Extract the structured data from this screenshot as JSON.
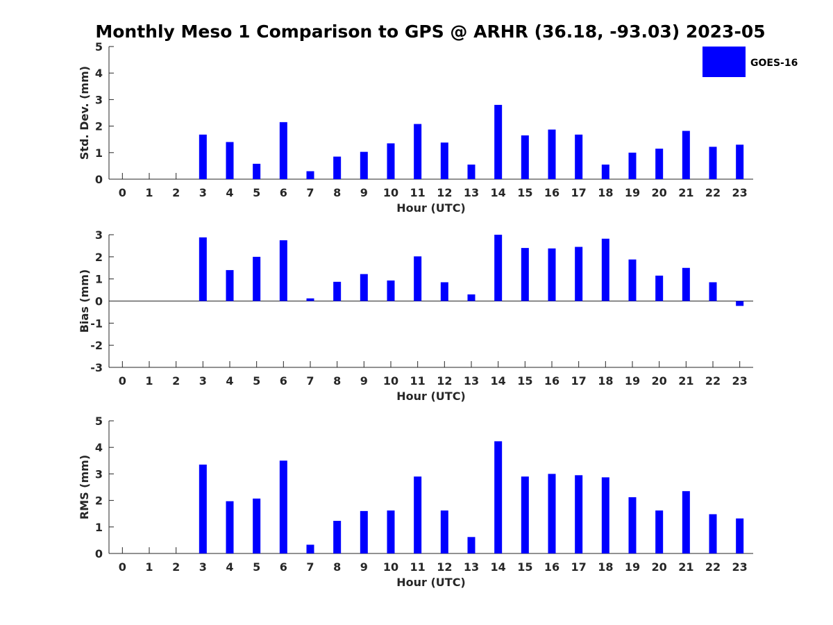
{
  "chart_data": {
    "type": "bar",
    "title": "Monthly Meso 1 Comparison to GPS @ ARHR (36.18, -93.03) 2023-05",
    "legend": {
      "position": "top-right",
      "entries": [
        "GOES-16"
      ]
    },
    "colors": {
      "bar": "#0000ff",
      "axis": "#262626"
    },
    "panels": [
      {
        "ylabel": "Std. Dev. (mm)",
        "xlabel": "Hour (UTC)",
        "ylim": [
          0,
          5
        ],
        "yticks": [
          0,
          1,
          2,
          3,
          4,
          5
        ],
        "categories": [
          0,
          1,
          2,
          3,
          4,
          5,
          6,
          7,
          8,
          9,
          10,
          11,
          12,
          13,
          14,
          15,
          16,
          17,
          18,
          19,
          20,
          21,
          22,
          23
        ],
        "series": [
          {
            "name": "GOES-16",
            "values": [
              null,
              null,
              null,
              1.68,
              1.4,
              0.58,
              2.15,
              0.3,
              0.85,
              1.03,
              1.35,
              2.08,
              1.38,
              0.55,
              2.8,
              1.65,
              1.87,
              1.68,
              0.55,
              1.0,
              1.15,
              1.82,
              1.22,
              1.3
            ]
          }
        ]
      },
      {
        "ylabel": "Bias (mm)",
        "xlabel": "Hour (UTC)",
        "ylim": [
          -3,
          3
        ],
        "yticks": [
          -3,
          -2,
          -1,
          0,
          1,
          2,
          3
        ],
        "categories": [
          0,
          1,
          2,
          3,
          4,
          5,
          6,
          7,
          8,
          9,
          10,
          11,
          12,
          13,
          14,
          15,
          16,
          17,
          18,
          19,
          20,
          21,
          22,
          23
        ],
        "series": [
          {
            "name": "GOES-16",
            "values": [
              null,
              null,
              null,
              2.88,
              1.4,
              2.0,
              2.75,
              0.12,
              0.87,
              1.22,
              0.93,
              2.02,
              0.85,
              0.3,
              3.0,
              2.4,
              2.38,
              2.45,
              2.82,
              1.88,
              1.15,
              1.5,
              0.85,
              -0.22
            ]
          }
        ]
      },
      {
        "ylabel": "RMS (mm)",
        "xlabel": "Hour (UTC)",
        "ylim": [
          0,
          5
        ],
        "yticks": [
          0,
          1,
          2,
          3,
          4,
          5
        ],
        "categories": [
          0,
          1,
          2,
          3,
          4,
          5,
          6,
          7,
          8,
          9,
          10,
          11,
          12,
          13,
          14,
          15,
          16,
          17,
          18,
          19,
          20,
          21,
          22,
          23
        ],
        "series": [
          {
            "name": "GOES-16",
            "values": [
              null,
              null,
              null,
              3.35,
              1.97,
              2.07,
              3.5,
              0.33,
              1.23,
              1.6,
              1.62,
              2.9,
              1.62,
              0.62,
              4.23,
              2.9,
              3.0,
              2.95,
              2.87,
              2.12,
              1.62,
              2.35,
              1.48,
              1.32
            ]
          }
        ]
      }
    ]
  }
}
